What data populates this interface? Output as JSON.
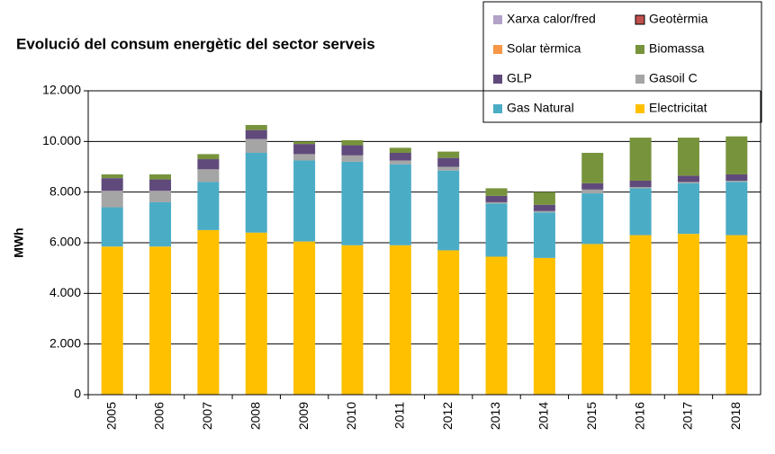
{
  "chart_data": {
    "type": "bar",
    "stacked": true,
    "title": "Evolució del consum energètic del sector serveis",
    "y_label": "MWh",
    "categories": [
      "2005",
      "2006",
      "2007",
      "2008",
      "2009",
      "2010",
      "2011",
      "2012",
      "2013",
      "2014",
      "2015",
      "2016",
      "2017",
      "2018"
    ],
    "series": [
      {
        "name": "Electricitat",
        "color": "#FFC000",
        "values": [
          5850,
          5850,
          6500,
          6400,
          6050,
          5900,
          5900,
          5700,
          5450,
          5400,
          5950,
          6300,
          6350,
          6300
        ]
      },
      {
        "name": "Gas Natural",
        "color": "#4BACC6",
        "values": [
          1550,
          1750,
          1900,
          3150,
          3200,
          3300,
          3200,
          3150,
          2100,
          1800,
          2000,
          1850,
          2000,
          2100
        ]
      },
      {
        "name": "Gasoil C",
        "color": "#A5A5A5",
        "values": [
          650,
          450,
          500,
          550,
          250,
          250,
          150,
          150,
          50,
          50,
          150,
          50,
          50,
          50
        ]
      },
      {
        "name": "GLP",
        "color": "#604A7B",
        "values": [
          500,
          450,
          400,
          350,
          400,
          400,
          300,
          350,
          250,
          250,
          250,
          250,
          250,
          250
        ]
      },
      {
        "name": "Biomassa",
        "color": "#77933C",
        "values": [
          150,
          200,
          200,
          200,
          100,
          200,
          200,
          250,
          300,
          500,
          1200,
          1700,
          1500,
          1500
        ]
      },
      {
        "name": "Solar tèrmica",
        "color": "#F79646",
        "values": [
          0,
          0,
          0,
          0,
          0,
          0,
          0,
          0,
          0,
          0,
          0,
          0,
          0,
          0
        ]
      },
      {
        "name": "Geotèrmia",
        "color": "#C0504D",
        "values": [
          0,
          0,
          0,
          0,
          0,
          0,
          0,
          0,
          0,
          0,
          0,
          0,
          0,
          0
        ]
      },
      {
        "name": "Xarxa calor/fred",
        "color": "#B3A2C7",
        "values": [
          0,
          0,
          0,
          0,
          0,
          0,
          0,
          0,
          0,
          0,
          0,
          0,
          0,
          0
        ]
      }
    ],
    "ylim": [
      0,
      12000
    ],
    "yticks": [
      0,
      {
        "value": 2000,
        "label": "2.000"
      },
      {
        "value": 4000,
        "label": "4.000"
      },
      {
        "value": 6000,
        "label": "6.000"
      },
      {
        "value": 8000,
        "label": "8.000"
      },
      {
        "value": 10000,
        "label": "10.000"
      },
      {
        "value": 12000,
        "label": "12.000"
      }
    ],
    "grid": true,
    "legend": "top-right"
  }
}
